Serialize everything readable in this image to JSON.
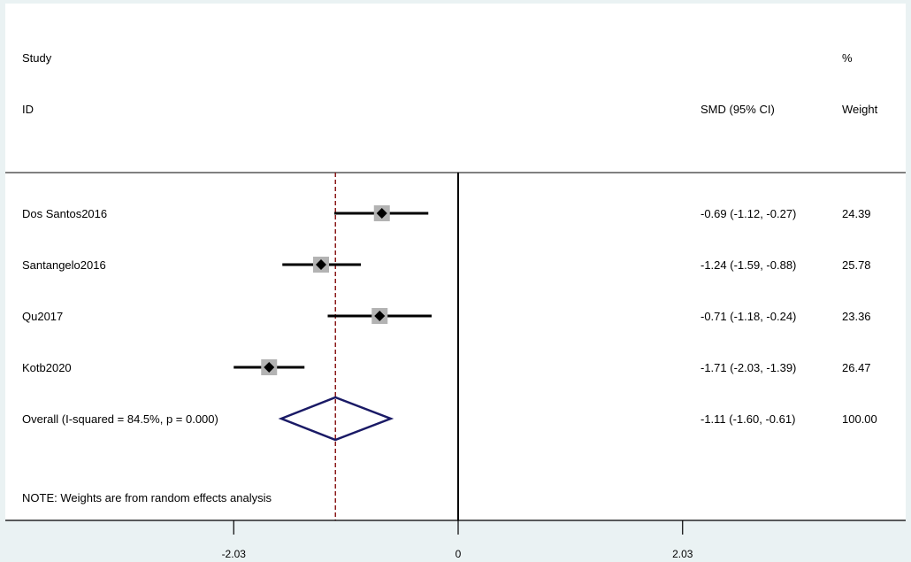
{
  "chart_data": {
    "type": "forest",
    "headers": {
      "study_line1": "Study",
      "study_line2": "ID",
      "effect_header": "SMD (95% CI)",
      "weight_line1": "%",
      "weight_line2": "Weight"
    },
    "studies": [
      {
        "id": "Dos Santos2016",
        "smd": -0.69,
        "lower": -1.12,
        "upper": -0.27,
        "ci_text": "-0.69 (-1.12, -0.27)",
        "weight": "24.39"
      },
      {
        "id": "Santangelo2016",
        "smd": -1.24,
        "lower": -1.59,
        "upper": -0.88,
        "ci_text": "-1.24 (-1.59, -0.88)",
        "weight": "25.78"
      },
      {
        "id": "Qu2017",
        "smd": -0.71,
        "lower": -1.18,
        "upper": -0.24,
        "ci_text": "-0.71 (-1.18, -0.24)",
        "weight": "23.36"
      },
      {
        "id": "Kotb2020",
        "smd": -1.71,
        "lower": -2.03,
        "upper": -1.39,
        "ci_text": "-1.71 (-2.03, -1.39)",
        "weight": "26.47"
      }
    ],
    "overall": {
      "label": "Overall  (I-squared = 84.5%, p = 0.000)",
      "smd": -1.11,
      "lower": -1.6,
      "upper": -0.61,
      "ci_text": "-1.11 (-1.60, -0.61)",
      "weight": "100.00"
    },
    "note": "NOTE: Weights are from random effects analysis",
    "x_ticks": [
      {
        "value": -2.03,
        "label": "-2.03"
      },
      {
        "value": 0,
        "label": "0"
      },
      {
        "value": 2.03,
        "label": "2.03"
      }
    ],
    "colors": {
      "ci_line": "#000000",
      "weight_box": "#b3b3b3",
      "point": "#000000",
      "diamond": "#1a1a66",
      "overall_line": "#8b1a1a",
      "null_line": "#000000",
      "frame_bg": "#ffffff",
      "outer_bg": "#eaf2f3"
    }
  }
}
